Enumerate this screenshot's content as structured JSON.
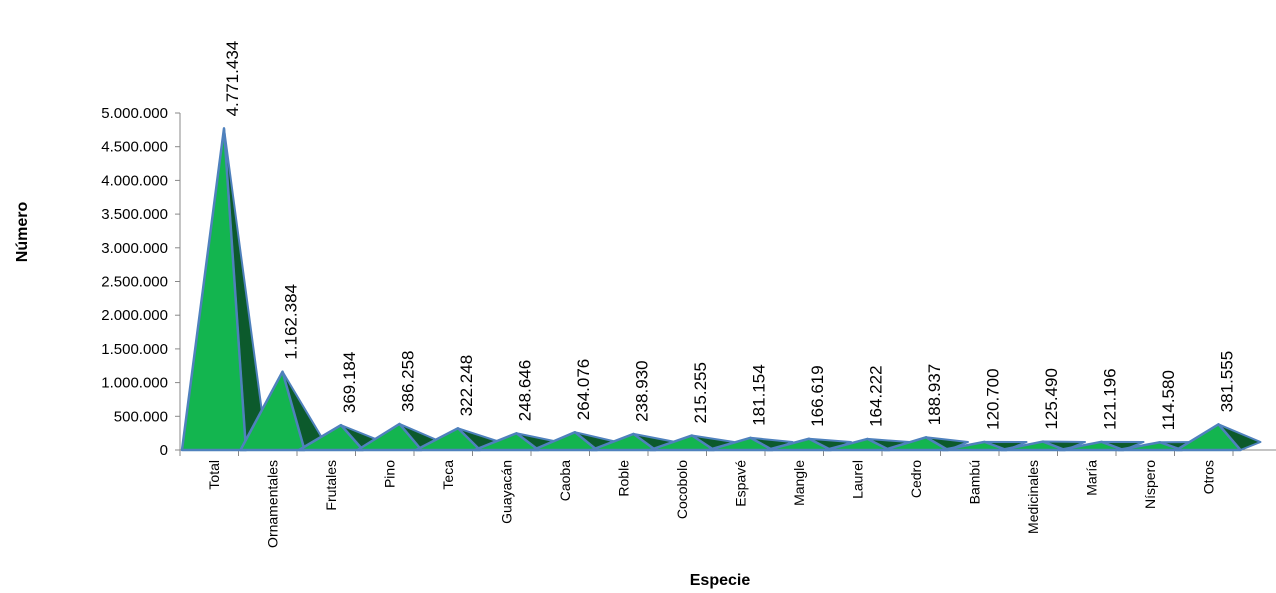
{
  "chart_data": {
    "type": "bar",
    "shape": "pyramid",
    "title": "",
    "xlabel": "Especie",
    "ylabel": "Número",
    "ylim": [
      0,
      5000000
    ],
    "yticks": [
      0,
      500000,
      1000000,
      1500000,
      2000000,
      2500000,
      3000000,
      3500000,
      4000000,
      4500000,
      5000000
    ],
    "ytick_labels": [
      "0",
      "500.000",
      "1.000.000",
      "1.500.000",
      "2.000.000",
      "2.500.000",
      "3.000.000",
      "3.500.000",
      "4.000.000",
      "4.500.000",
      "5.000.000"
    ],
    "grid": false,
    "legend": "none",
    "categories": [
      "Total",
      "Ornamentales",
      "Frutales",
      "Pino",
      "Teca",
      "Guayacán",
      "Caoba",
      "Roble",
      "Cocobolo",
      "Espavé",
      "Mangle",
      "Laurel",
      "Cedro",
      "Bambú",
      "Medicinales",
      "María",
      "Níspero",
      "Otros"
    ],
    "values": [
      4771434,
      1162384,
      369184,
      386258,
      322248,
      248646,
      264076,
      238930,
      215255,
      181154,
      166619,
      164222,
      188937,
      120700,
      125490,
      121196,
      114580,
      381555
    ],
    "value_labels": [
      "4.771.434",
      "1.162.384",
      "369.184",
      "386.258",
      "322.248",
      "248.646",
      "264.076",
      "238.930",
      "215.255",
      "181.154",
      "166.619",
      "164.222",
      "188.937",
      "120.700",
      "125.490",
      "121.196",
      "114.580",
      "381.555"
    ],
    "colors": {
      "face": "#13B54F",
      "side": "#0C5A2C",
      "outline": "#4F81BD"
    }
  }
}
